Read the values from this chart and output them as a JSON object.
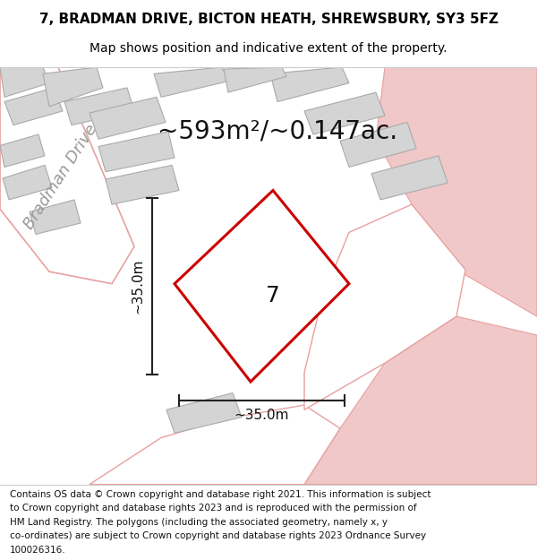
{
  "title_line1": "7, BRADMAN DRIVE, BICTON HEATH, SHREWSBURY, SY3 5FZ",
  "title_line2": "Map shows position and indicative extent of the property.",
  "area_text": "~593m²/~0.147ac.",
  "number_label": "7",
  "dim_vertical": "~35.0m",
  "dim_horizontal": "~35.0m",
  "street_label": "Bradman Drive",
  "footer_lines": [
    "Contains OS data © Crown copyright and database right 2021. This information is subject",
    "to Crown copyright and database rights 2023 and is reproduced with the permission of",
    "HM Land Registry. The polygons (including the associated geometry, namely x, y",
    "co-ordinates) are subject to Crown copyright and database rights 2023 Ordnance Survey",
    "100026316."
  ],
  "bg_color": "#ffffff",
  "map_bg": "#f0f0f0",
  "road_color": "#ffffff",
  "road_stroke": "#e8a0a0",
  "building_fill": "#d4d4d4",
  "building_stroke": "#aaaaaa",
  "plot_fill": "#ffffff",
  "plot_stroke": "#cc0000",
  "pink_fill": "#f0c8c8",
  "title_fontsize": 11,
  "subtitle_fontsize": 10,
  "area_fontsize": 20,
  "label_fontsize": 18,
  "dim_fontsize": 11,
  "street_fontsize": 13,
  "footer_fontsize": 7.5
}
